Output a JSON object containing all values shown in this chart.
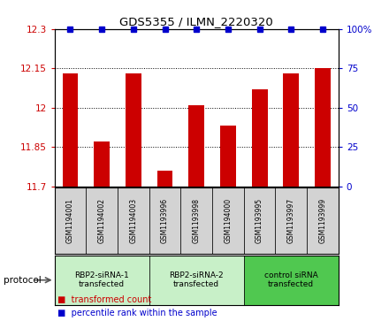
{
  "title": "GDS5355 / ILMN_2220320",
  "samples": [
    "GSM1194001",
    "GSM1194002",
    "GSM1194003",
    "GSM1193996",
    "GSM1193998",
    "GSM1194000",
    "GSM1193995",
    "GSM1193997",
    "GSM1193999"
  ],
  "bar_values": [
    12.13,
    11.87,
    12.13,
    11.76,
    12.01,
    11.93,
    12.07,
    12.13,
    12.15
  ],
  "percentile_values": [
    100,
    100,
    100,
    100,
    100,
    100,
    100,
    100,
    100
  ],
  "ylim_left": [
    11.7,
    12.3
  ],
  "ylim_right": [
    0,
    100
  ],
  "yticks_left": [
    11.7,
    11.85,
    12.0,
    12.15,
    12.3
  ],
  "yticks_right": [
    0,
    25,
    50,
    75,
    100
  ],
  "ytick_labels_left": [
    "11.7",
    "11.85",
    "12",
    "12.15",
    "12.3"
  ],
  "ytick_labels_right": [
    "0",
    "25",
    "50",
    "75",
    "100%"
  ],
  "groups": [
    {
      "label": "RBP2-siRNA-1\ntransfected",
      "start": 0,
      "end": 3,
      "color": "#c8f0c8"
    },
    {
      "label": "RBP2-siRNA-2\ntransfected",
      "start": 3,
      "end": 6,
      "color": "#c8f0c8"
    },
    {
      "label": "control siRNA\ntransfected",
      "start": 6,
      "end": 9,
      "color": "#50c850"
    }
  ],
  "bar_color": "#cc0000",
  "percentile_color": "#0000cc",
  "bg_color": "#ffffff",
  "sample_box_color": "#d3d3d3",
  "legend_items": [
    {
      "label": "transformed count",
      "color": "#cc0000"
    },
    {
      "label": "percentile rank within the sample",
      "color": "#0000cc"
    }
  ],
  "protocol_label": "protocol"
}
